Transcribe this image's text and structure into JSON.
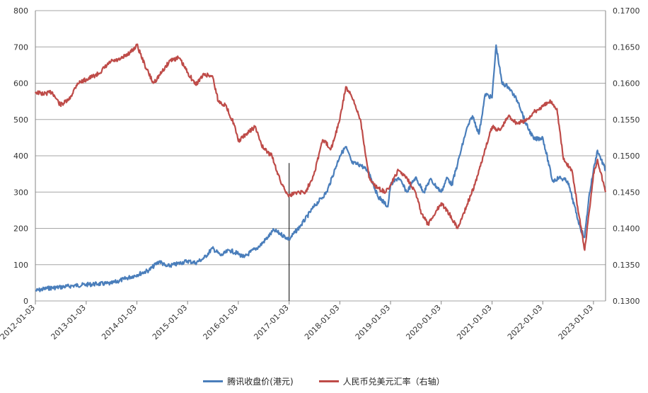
{
  "chart_data": {
    "type": "line",
    "title": "",
    "x_tick_labels": [
      "2012-01-03",
      "2013-01-03",
      "2014-01-03",
      "2015-01-03",
      "2016-01-03",
      "2017-01-03",
      "2018-01-03",
      "2019-01-03",
      "2020-01-03",
      "2021-01-03",
      "2022-01-03",
      "2023-01-03"
    ],
    "xlim": [
      "2012-01-03",
      "2023-03-31"
    ],
    "left_axis": {
      "ylim": [
        0,
        800
      ],
      "ticks": [
        0,
        100,
        200,
        300,
        400,
        500,
        600,
        700,
        800
      ]
    },
    "right_axis": {
      "ylim": [
        0.13,
        0.17
      ],
      "ticks": [
        "0.1300",
        "0.1350",
        "0.1400",
        "0.1450",
        "0.1500",
        "0.1550",
        "0.1600",
        "0.1650",
        "0.1700"
      ]
    },
    "grid": "horizontal",
    "legend_position": "bottom",
    "annotation": {
      "type": "vertical-line",
      "x": "2017-01-03",
      "y_top": 380
    },
    "series": [
      {
        "name": "腾讯收盘价(港元)",
        "axis": "left",
        "color": "#4a7ebb",
        "points": [
          [
            "2012-01-03",
            28
          ],
          [
            "2012-04-01",
            35
          ],
          [
            "2012-07-01",
            38
          ],
          [
            "2012-10-01",
            42
          ],
          [
            "2013-01-03",
            45
          ],
          [
            "2013-04-01",
            47
          ],
          [
            "2013-07-01",
            48
          ],
          [
            "2013-10-01",
            60
          ],
          [
            "2014-01-03",
            72
          ],
          [
            "2014-04-01",
            85
          ],
          [
            "2014-06-15",
            110
          ],
          [
            "2014-08-01",
            95
          ],
          [
            "2014-10-01",
            100
          ],
          [
            "2015-01-03",
            110
          ],
          [
            "2015-03-01",
            105
          ],
          [
            "2015-05-01",
            118
          ],
          [
            "2015-07-01",
            145
          ],
          [
            "2015-09-01",
            125
          ],
          [
            "2015-11-01",
            140
          ],
          [
            "2016-01-03",
            130
          ],
          [
            "2016-02-15",
            120
          ],
          [
            "2016-04-01",
            135
          ],
          [
            "2016-06-01",
            150
          ],
          [
            "2016-08-01",
            175
          ],
          [
            "2016-09-15",
            195
          ],
          [
            "2016-11-01",
            185
          ],
          [
            "2017-01-03",
            170
          ],
          [
            "2017-04-01",
            210
          ],
          [
            "2017-07-01",
            260
          ],
          [
            "2017-10-01",
            300
          ],
          [
            "2018-01-03",
            400
          ],
          [
            "2018-02-15",
            425
          ],
          [
            "2018-04-01",
            380
          ],
          [
            "2018-06-01",
            375
          ],
          [
            "2018-08-01",
            355
          ],
          [
            "2018-10-01",
            290
          ],
          [
            "2018-12-15",
            260
          ],
          [
            "2019-01-03",
            320
          ],
          [
            "2019-03-01",
            340
          ],
          [
            "2019-05-01",
            300
          ],
          [
            "2019-07-01",
            340
          ],
          [
            "2019-09-01",
            300
          ],
          [
            "2019-10-15",
            335
          ],
          [
            "2020-01-03",
            300
          ],
          [
            "2020-02-15",
            340
          ],
          [
            "2020-03-20",
            320
          ],
          [
            "2020-05-01",
            380
          ],
          [
            "2020-07-01",
            470
          ],
          [
            "2020-08-15",
            510
          ],
          [
            "2020-10-01",
            460
          ],
          [
            "2020-11-15",
            570
          ],
          [
            "2021-01-03",
            560
          ],
          [
            "2021-02-01",
            705
          ],
          [
            "2021-03-15",
            600
          ],
          [
            "2021-05-01",
            590
          ],
          [
            "2021-07-15",
            545
          ],
          [
            "2021-09-01",
            490
          ],
          [
            "2021-11-01",
            445
          ],
          [
            "2022-01-03",
            450
          ],
          [
            "2022-03-15",
            330
          ],
          [
            "2022-05-01",
            340
          ],
          [
            "2022-07-01",
            330
          ],
          [
            "2022-10-01",
            200
          ],
          [
            "2022-10-31",
            175
          ],
          [
            "2022-12-01",
            285
          ],
          [
            "2023-01-03",
            360
          ],
          [
            "2023-02-01",
            415
          ],
          [
            "2023-03-31",
            360
          ]
        ]
      },
      {
        "name": "人民币兑美元汇率（右轴）",
        "axis": "right",
        "color": "#be4b48",
        "points": [
          [
            "2012-01-03",
            0.1588
          ],
          [
            "2012-03-01",
            0.1585
          ],
          [
            "2012-05-01",
            0.1588
          ],
          [
            "2012-07-01",
            0.157
          ],
          [
            "2012-09-01",
            0.1577
          ],
          [
            "2012-11-01",
            0.16
          ],
          [
            "2013-01-03",
            0.1605
          ],
          [
            "2013-04-01",
            0.1613
          ],
          [
            "2013-07-01",
            0.163
          ],
          [
            "2013-09-01",
            0.1632
          ],
          [
            "2013-12-01",
            0.1645
          ],
          [
            "2014-01-03",
            0.1653
          ],
          [
            "2014-03-01",
            0.1625
          ],
          [
            "2014-05-01",
            0.16
          ],
          [
            "2014-07-01",
            0.1615
          ],
          [
            "2014-09-01",
            0.1632
          ],
          [
            "2014-11-01",
            0.1635
          ],
          [
            "2015-01-03",
            0.1615
          ],
          [
            "2015-03-01",
            0.1598
          ],
          [
            "2015-05-01",
            0.1612
          ],
          [
            "2015-07-01",
            0.161
          ],
          [
            "2015-08-12",
            0.1575
          ],
          [
            "2015-10-01",
            0.157
          ],
          [
            "2015-12-01",
            0.1545
          ],
          [
            "2016-01-03",
            0.152
          ],
          [
            "2016-03-01",
            0.153
          ],
          [
            "2016-05-01",
            0.154
          ],
          [
            "2016-07-01",
            0.151
          ],
          [
            "2016-09-01",
            0.15
          ],
          [
            "2016-11-01",
            0.1465
          ],
          [
            "2016-12-15",
            0.145
          ],
          [
            "2017-01-03",
            0.1445
          ],
          [
            "2017-03-01",
            0.145
          ],
          [
            "2017-05-01",
            0.145
          ],
          [
            "2017-07-01",
            0.1475
          ],
          [
            "2017-09-01",
            0.1522
          ],
          [
            "2017-11-01",
            0.151
          ],
          [
            "2018-01-03",
            0.155
          ],
          [
            "2018-02-15",
            0.1595
          ],
          [
            "2018-04-01",
            0.158
          ],
          [
            "2018-06-01",
            0.155
          ],
          [
            "2018-08-01",
            0.147
          ],
          [
            "2018-10-01",
            0.1455
          ],
          [
            "2018-12-01",
            0.145
          ],
          [
            "2019-01-03",
            0.146
          ],
          [
            "2019-03-01",
            0.148
          ],
          [
            "2019-05-01",
            0.147
          ],
          [
            "2019-07-01",
            0.145
          ],
          [
            "2019-08-15",
            0.142
          ],
          [
            "2019-10-01",
            0.1405
          ],
          [
            "2019-12-01",
            0.1425
          ],
          [
            "2020-01-03",
            0.1435
          ],
          [
            "2020-03-01",
            0.142
          ],
          [
            "2020-05-01",
            0.14
          ],
          [
            "2020-07-01",
            0.143
          ],
          [
            "2020-09-01",
            0.146
          ],
          [
            "2020-11-01",
            0.15
          ],
          [
            "2021-01-03",
            0.154
          ],
          [
            "2021-03-01",
            0.1535
          ],
          [
            "2021-05-01",
            0.1555
          ],
          [
            "2021-07-01",
            0.1545
          ],
          [
            "2021-09-01",
            0.1548
          ],
          [
            "2021-11-01",
            0.156
          ],
          [
            "2022-01-03",
            0.1568
          ],
          [
            "2022-03-01",
            0.1575
          ],
          [
            "2022-04-15",
            0.1565
          ],
          [
            "2022-06-01",
            0.1495
          ],
          [
            "2022-08-01",
            0.148
          ],
          [
            "2022-10-01",
            0.1405
          ],
          [
            "2022-11-01",
            0.137
          ],
          [
            "2022-12-01",
            0.142
          ],
          [
            "2023-01-03",
            0.1475
          ],
          [
            "2023-02-01",
            0.1495
          ],
          [
            "2023-03-31",
            0.145
          ]
        ]
      }
    ]
  },
  "legend": [
    {
      "label": "腾讯收盘价(港元)",
      "color": "#4a7ebb"
    },
    {
      "label": "人民币兑美元汇率（右轴）",
      "color": "#be4b48"
    }
  ]
}
